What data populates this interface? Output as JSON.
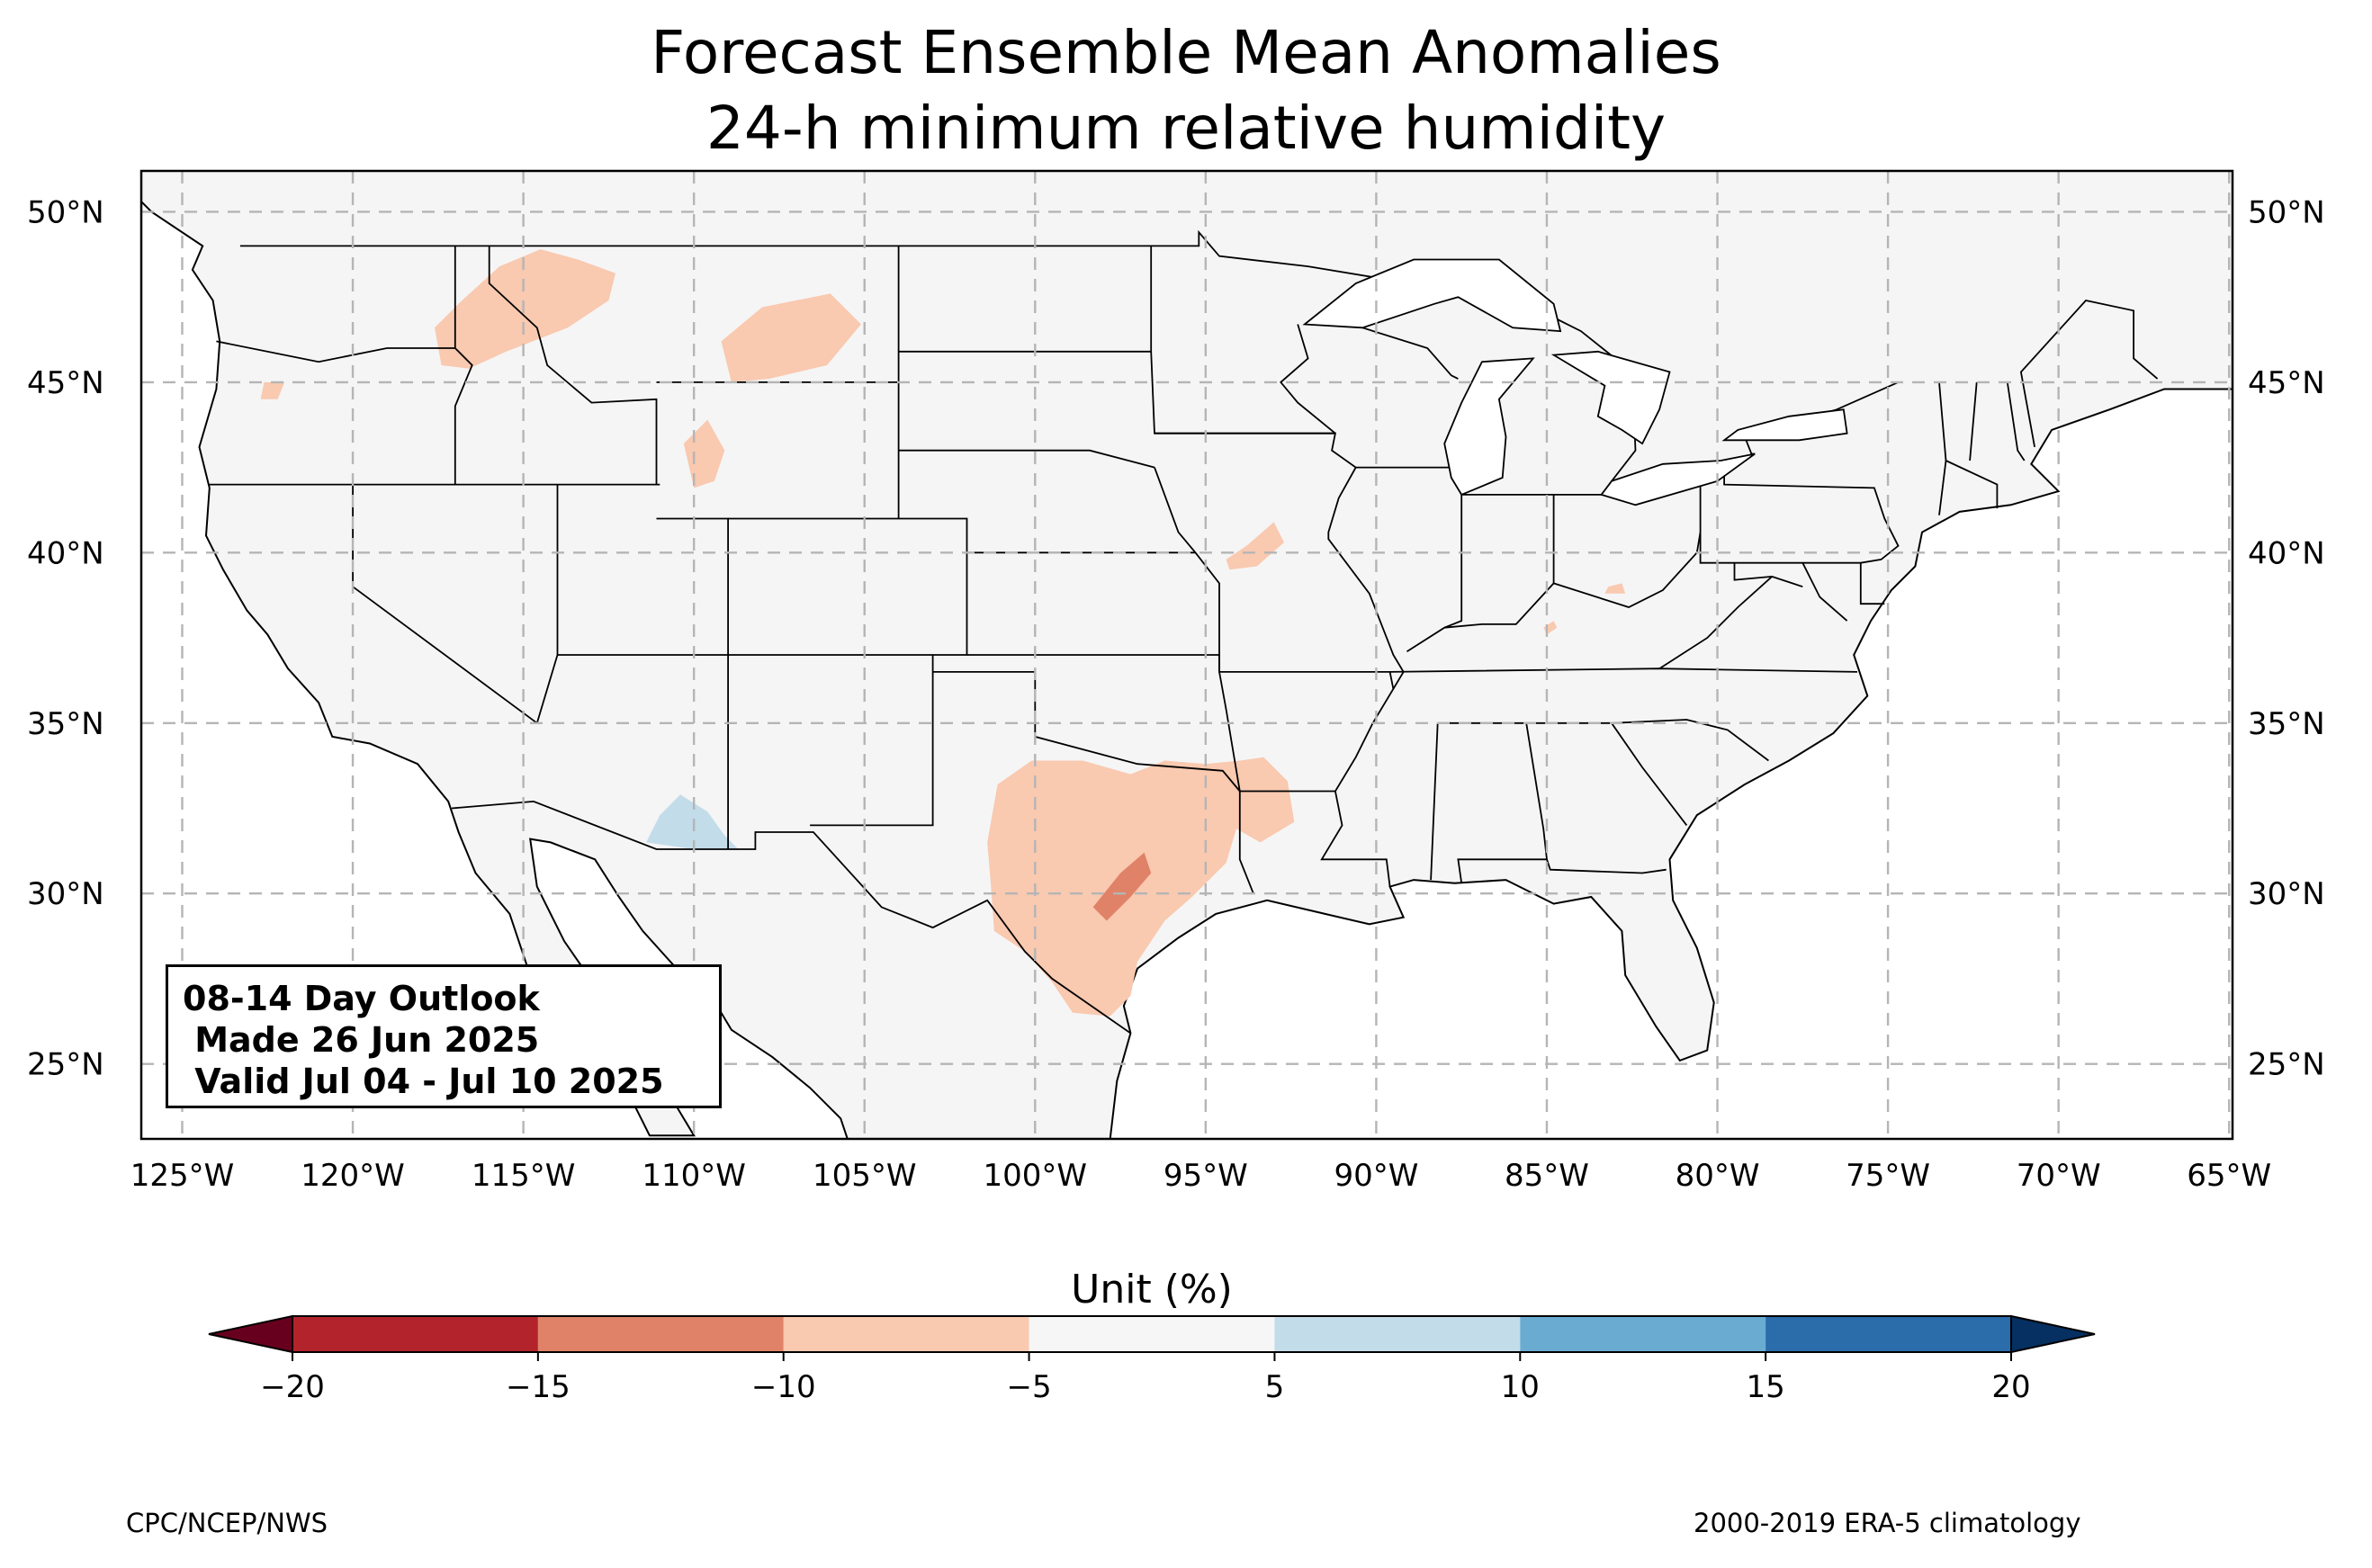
{
  "title": {
    "line1": "Forecast Ensemble Mean Anomalies",
    "line2": "24-h minimum relative humidity"
  },
  "outlook_box": {
    "line1": "08-14 Day Outlook",
    "line2": " Made 26 Jun 2025",
    "line3": " Valid Jul 04 - Jul 10 2025"
  },
  "map": {
    "extent": {
      "lon_min": -126.2,
      "lon_max": -64.9,
      "lat_min": 22.8,
      "lat_max": 51.2
    },
    "lat_ticks": [
      {
        "value": 25,
        "label": "25°N"
      },
      {
        "value": 30,
        "label": "30°N"
      },
      {
        "value": 35,
        "label": "35°N"
      },
      {
        "value": 40,
        "label": "40°N"
      },
      {
        "value": 45,
        "label": "45°N"
      },
      {
        "value": 50,
        "label": "50°N"
      }
    ],
    "lon_ticks": [
      {
        "value": -125,
        "label": "125°W"
      },
      {
        "value": -120,
        "label": "120°W"
      },
      {
        "value": -115,
        "label": "115°W"
      },
      {
        "value": -110,
        "label": "110°W"
      },
      {
        "value": -105,
        "label": "105°W"
      },
      {
        "value": -100,
        "label": "100°W"
      },
      {
        "value": -95,
        "label": "95°W"
      },
      {
        "value": -90,
        "label": "90°W"
      },
      {
        "value": -85,
        "label": "85°W"
      },
      {
        "value": -80,
        "label": "80°W"
      },
      {
        "value": -75,
        "label": "75°W"
      },
      {
        "value": -70,
        "label": "70°W"
      },
      {
        "value": -65,
        "label": "65°W"
      }
    ],
    "land_color": "#f5f5f5",
    "gridlines": true
  },
  "anomaly_regions": [
    {
      "name": "northern-idaho-montana",
      "category": "-10 to -5",
      "color": "#f9c9b0",
      "points": [
        [
          -117.4,
          45.5
        ],
        [
          -117.6,
          46.6
        ],
        [
          -116.8,
          47.4
        ],
        [
          -115.7,
          48.4
        ],
        [
          -114.5,
          48.9
        ],
        [
          -113.4,
          48.6
        ],
        [
          -112.3,
          48.2
        ],
        [
          -112.5,
          47.4
        ],
        [
          -113.7,
          46.6
        ],
        [
          -115.5,
          45.9
        ],
        [
          -116.6,
          45.4
        ]
      ]
    },
    {
      "name": "central-montana",
      "category": "-10 to -5",
      "color": "#f9c9b0",
      "points": [
        [
          -108.9,
          45.0
        ],
        [
          -109.2,
          46.2
        ],
        [
          -108.0,
          47.2
        ],
        [
          -106.0,
          47.6
        ],
        [
          -105.1,
          46.7
        ],
        [
          -106.1,
          45.5
        ],
        [
          -107.8,
          45.1
        ]
      ]
    },
    {
      "name": "western-wyoming",
      "category": "-10 to -5",
      "color": "#f9c9b0",
      "points": [
        [
          -110.0,
          41.9
        ],
        [
          -110.3,
          43.2
        ],
        [
          -109.6,
          43.9
        ],
        [
          -109.1,
          43.0
        ],
        [
          -109.4,
          42.1
        ]
      ]
    },
    {
      "name": "eastern-oregon",
      "category": "-10 to -5",
      "color": "#f9c9b0",
      "points": [
        [
          -122.7,
          44.5
        ],
        [
          -122.6,
          45.0
        ],
        [
          -122.0,
          45.0
        ],
        [
          -122.2,
          44.5
        ]
      ]
    },
    {
      "name": "texas-oklahoma",
      "category": "-10 to -5",
      "color": "#f9c9b0",
      "points": [
        [
          -101.1,
          33.2
        ],
        [
          -100.1,
          33.9
        ],
        [
          -98.6,
          33.9
        ],
        [
          -97.2,
          33.5
        ],
        [
          -96.2,
          33.9
        ],
        [
          -95.0,
          33.8
        ],
        [
          -94.0,
          33.9
        ],
        [
          -93.3,
          34.0
        ],
        [
          -92.6,
          33.3
        ],
        [
          -92.4,
          32.1
        ],
        [
          -93.4,
          31.5
        ],
        [
          -94.1,
          31.9
        ],
        [
          -94.4,
          30.9
        ],
        [
          -95.4,
          29.9
        ],
        [
          -96.2,
          29.2
        ],
        [
          -97.0,
          28.0
        ],
        [
          -97.2,
          27.0
        ],
        [
          -97.8,
          26.4
        ],
        [
          -98.9,
          26.5
        ],
        [
          -99.5,
          27.4
        ],
        [
          -100.3,
          28.3
        ],
        [
          -101.2,
          28.9
        ],
        [
          -101.3,
          30.3
        ],
        [
          -101.4,
          31.5
        ]
      ]
    },
    {
      "name": "central-texas-core",
      "category": "-15 to -10",
      "color": "#e08268",
      "points": [
        [
          -98.3,
          29.6
        ],
        [
          -97.5,
          30.6
        ],
        [
          -96.8,
          31.2
        ],
        [
          -96.6,
          30.6
        ],
        [
          -97.2,
          29.9
        ],
        [
          -97.9,
          29.2
        ]
      ]
    },
    {
      "name": "northern-missouri",
      "category": "-10 to -5",
      "color": "#f9c9b0",
      "points": [
        [
          -94.3,
          39.5
        ],
        [
          -93.5,
          39.6
        ],
        [
          -92.7,
          40.3
        ],
        [
          -93.0,
          40.9
        ],
        [
          -93.8,
          40.2
        ],
        [
          -94.4,
          39.8
        ]
      ]
    },
    {
      "name": "kentucky-spot",
      "category": "-10 to -5",
      "color": "#f9c9b0",
      "points": [
        [
          -85.0,
          37.6
        ],
        [
          -84.7,
          37.8
        ],
        [
          -84.8,
          38.0
        ],
        [
          -85.1,
          37.8
        ]
      ]
    },
    {
      "name": "ohio-spot",
      "category": "-10 to -5",
      "color": "#f9c9b0",
      "points": [
        [
          -83.3,
          38.8
        ],
        [
          -82.7,
          38.8
        ],
        [
          -82.8,
          39.1
        ],
        [
          -83.2,
          39.0
        ]
      ]
    },
    {
      "name": "southern-arizona",
      "category": "5 to 10",
      "color": "#c3dcea",
      "points": [
        [
          -111.4,
          31.5
        ],
        [
          -111.0,
          32.3
        ],
        [
          -110.4,
          32.9
        ],
        [
          -109.6,
          32.4
        ],
        [
          -109.1,
          31.7
        ],
        [
          -108.7,
          31.3
        ],
        [
          -110.0,
          31.3
        ]
      ]
    }
  ],
  "colorbar": {
    "title": "Unit (%)",
    "ticks": [
      "−20",
      "−15",
      "−10",
      "−5",
      "5",
      "10",
      "15",
      "20"
    ],
    "bins": [
      {
        "range": "-20 to -15",
        "color": "#b2232c"
      },
      {
        "range": "-15 to -10",
        "color": "#e08268"
      },
      {
        "range": "-10 to -5",
        "color": "#f9c9b0"
      },
      {
        "range": "-5 to 5",
        "color": "#f6f6f6"
      },
      {
        "range": "5 to 10",
        "color": "#c3dcea"
      },
      {
        "range": "10 to 15",
        "color": "#6aabd2"
      },
      {
        "range": "15 to 20",
        "color": "#2b6cab"
      }
    ],
    "extend_low_color": "#67001f",
    "extend_high_color": "#053061"
  },
  "credits": {
    "left": "CPC/NCEP/NWS",
    "right": "2000-2019 ERA-5 climatology"
  }
}
